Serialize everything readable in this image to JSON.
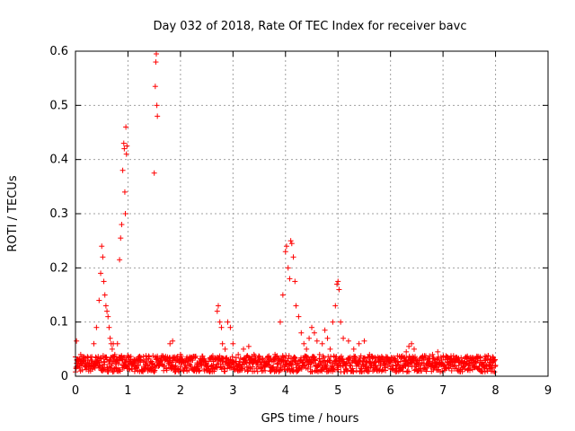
{
  "chart_data": {
    "type": "scatter",
    "title": "Day 032 of 2018, Rate Of TEC Index for receiver bavc",
    "xlabel": "GPS time / hours",
    "ylabel": "ROTI / TECUs",
    "xlim": [
      0,
      9
    ],
    "ylim": [
      0,
      0.6
    ],
    "xticks": [
      "0",
      "1",
      "2",
      "3",
      "4",
      "5",
      "6",
      "7",
      "8",
      "9"
    ],
    "yticks": [
      "0",
      "0.1",
      "0.2",
      "0.3",
      "0.4",
      "0.5",
      "0.6"
    ],
    "grid": true,
    "marker": "+",
    "color": "#ff0000",
    "series": [
      {
        "x": [
          0.02,
          0.05,
          0.08,
          0.1,
          0.15,
          0.2,
          0.25,
          0.3,
          0.35,
          0.4,
          0.45,
          0.48,
          0.5,
          0.52,
          0.54,
          0.56,
          0.58,
          0.6,
          0.62,
          0.64,
          0.66,
          0.68,
          0.7,
          0.72,
          0.75,
          0.78,
          0.8,
          0.84,
          0.86,
          0.88,
          0.9,
          0.92,
          0.93,
          0.94,
          0.95,
          0.96,
          0.97,
          0.98,
          1.0,
          1.05,
          1.1,
          1.2,
          1.3,
          1.4,
          1.5,
          1.52,
          1.53,
          1.54,
          1.55,
          1.56,
          1.6,
          1.7,
          1.8,
          1.85,
          1.9,
          2.0,
          2.1,
          2.2,
          2.3,
          2.4,
          2.5,
          2.6,
          2.7,
          2.72,
          2.75,
          2.78,
          2.8,
          2.85,
          2.9,
          2.95,
          3.0,
          3.1,
          3.2,
          3.3,
          3.4,
          3.5,
          3.6,
          3.7,
          3.8,
          3.9,
          3.95,
          4.0,
          4.02,
          4.05,
          4.08,
          4.1,
          4.12,
          4.15,
          4.18,
          4.2,
          4.25,
          4.3,
          4.35,
          4.4,
          4.45,
          4.5,
          4.55,
          4.6,
          4.65,
          4.7,
          4.75,
          4.8,
          4.85,
          4.9,
          4.95,
          4.98,
          5.0,
          5.02,
          5.05,
          5.1,
          5.2,
          5.3,
          5.4,
          5.5,
          5.6,
          5.7,
          5.8,
          5.9,
          6.0,
          6.1,
          6.2,
          6.3,
          6.35,
          6.4,
          6.45,
          6.5,
          6.6,
          6.7,
          6.8,
          6.9,
          7.0,
          7.1,
          7.2,
          7.3,
          7.4,
          7.5,
          7.6,
          7.7,
          7.8,
          7.9,
          7.95,
          8.0
        ],
        "y": [
          0.065,
          0.03,
          0.02,
          0.04,
          0.03,
          0.025,
          0.02,
          0.03,
          0.06,
          0.09,
          0.14,
          0.19,
          0.24,
          0.22,
          0.175,
          0.15,
          0.13,
          0.12,
          0.11,
          0.09,
          0.07,
          0.06,
          0.05,
          0.06,
          0.04,
          0.03,
          0.06,
          0.215,
          0.255,
          0.28,
          0.38,
          0.43,
          0.42,
          0.34,
          0.3,
          0.46,
          0.41,
          0.425,
          0.02,
          0.03,
          0.025,
          0.02,
          0.018,
          0.015,
          0.375,
          0.535,
          0.58,
          0.595,
          0.5,
          0.48,
          0.02,
          0.03,
          0.06,
          0.065,
          0.03,
          0.04,
          0.02,
          0.018,
          0.015,
          0.02,
          0.018,
          0.02,
          0.12,
          0.13,
          0.1,
          0.09,
          0.06,
          0.05,
          0.1,
          0.09,
          0.06,
          0.04,
          0.05,
          0.055,
          0.04,
          0.03,
          0.025,
          0.03,
          0.04,
          0.1,
          0.15,
          0.23,
          0.24,
          0.2,
          0.18,
          0.25,
          0.245,
          0.22,
          0.175,
          0.13,
          0.11,
          0.08,
          0.06,
          0.05,
          0.07,
          0.09,
          0.08,
          0.065,
          0.04,
          0.06,
          0.085,
          0.07,
          0.05,
          0.1,
          0.13,
          0.17,
          0.175,
          0.16,
          0.1,
          0.07,
          0.065,
          0.05,
          0.06,
          0.065,
          0.04,
          0.035,
          0.03,
          0.025,
          0.03,
          0.02,
          0.035,
          0.045,
          0.055,
          0.06,
          0.05,
          0.03,
          0.025,
          0.03,
          0.04,
          0.045,
          0.035,
          0.025,
          0.03,
          0.02,
          0.025,
          0.02,
          0.018,
          0.025,
          0.02,
          0.018,
          0.025,
          0.02
        ]
      }
    ]
  }
}
